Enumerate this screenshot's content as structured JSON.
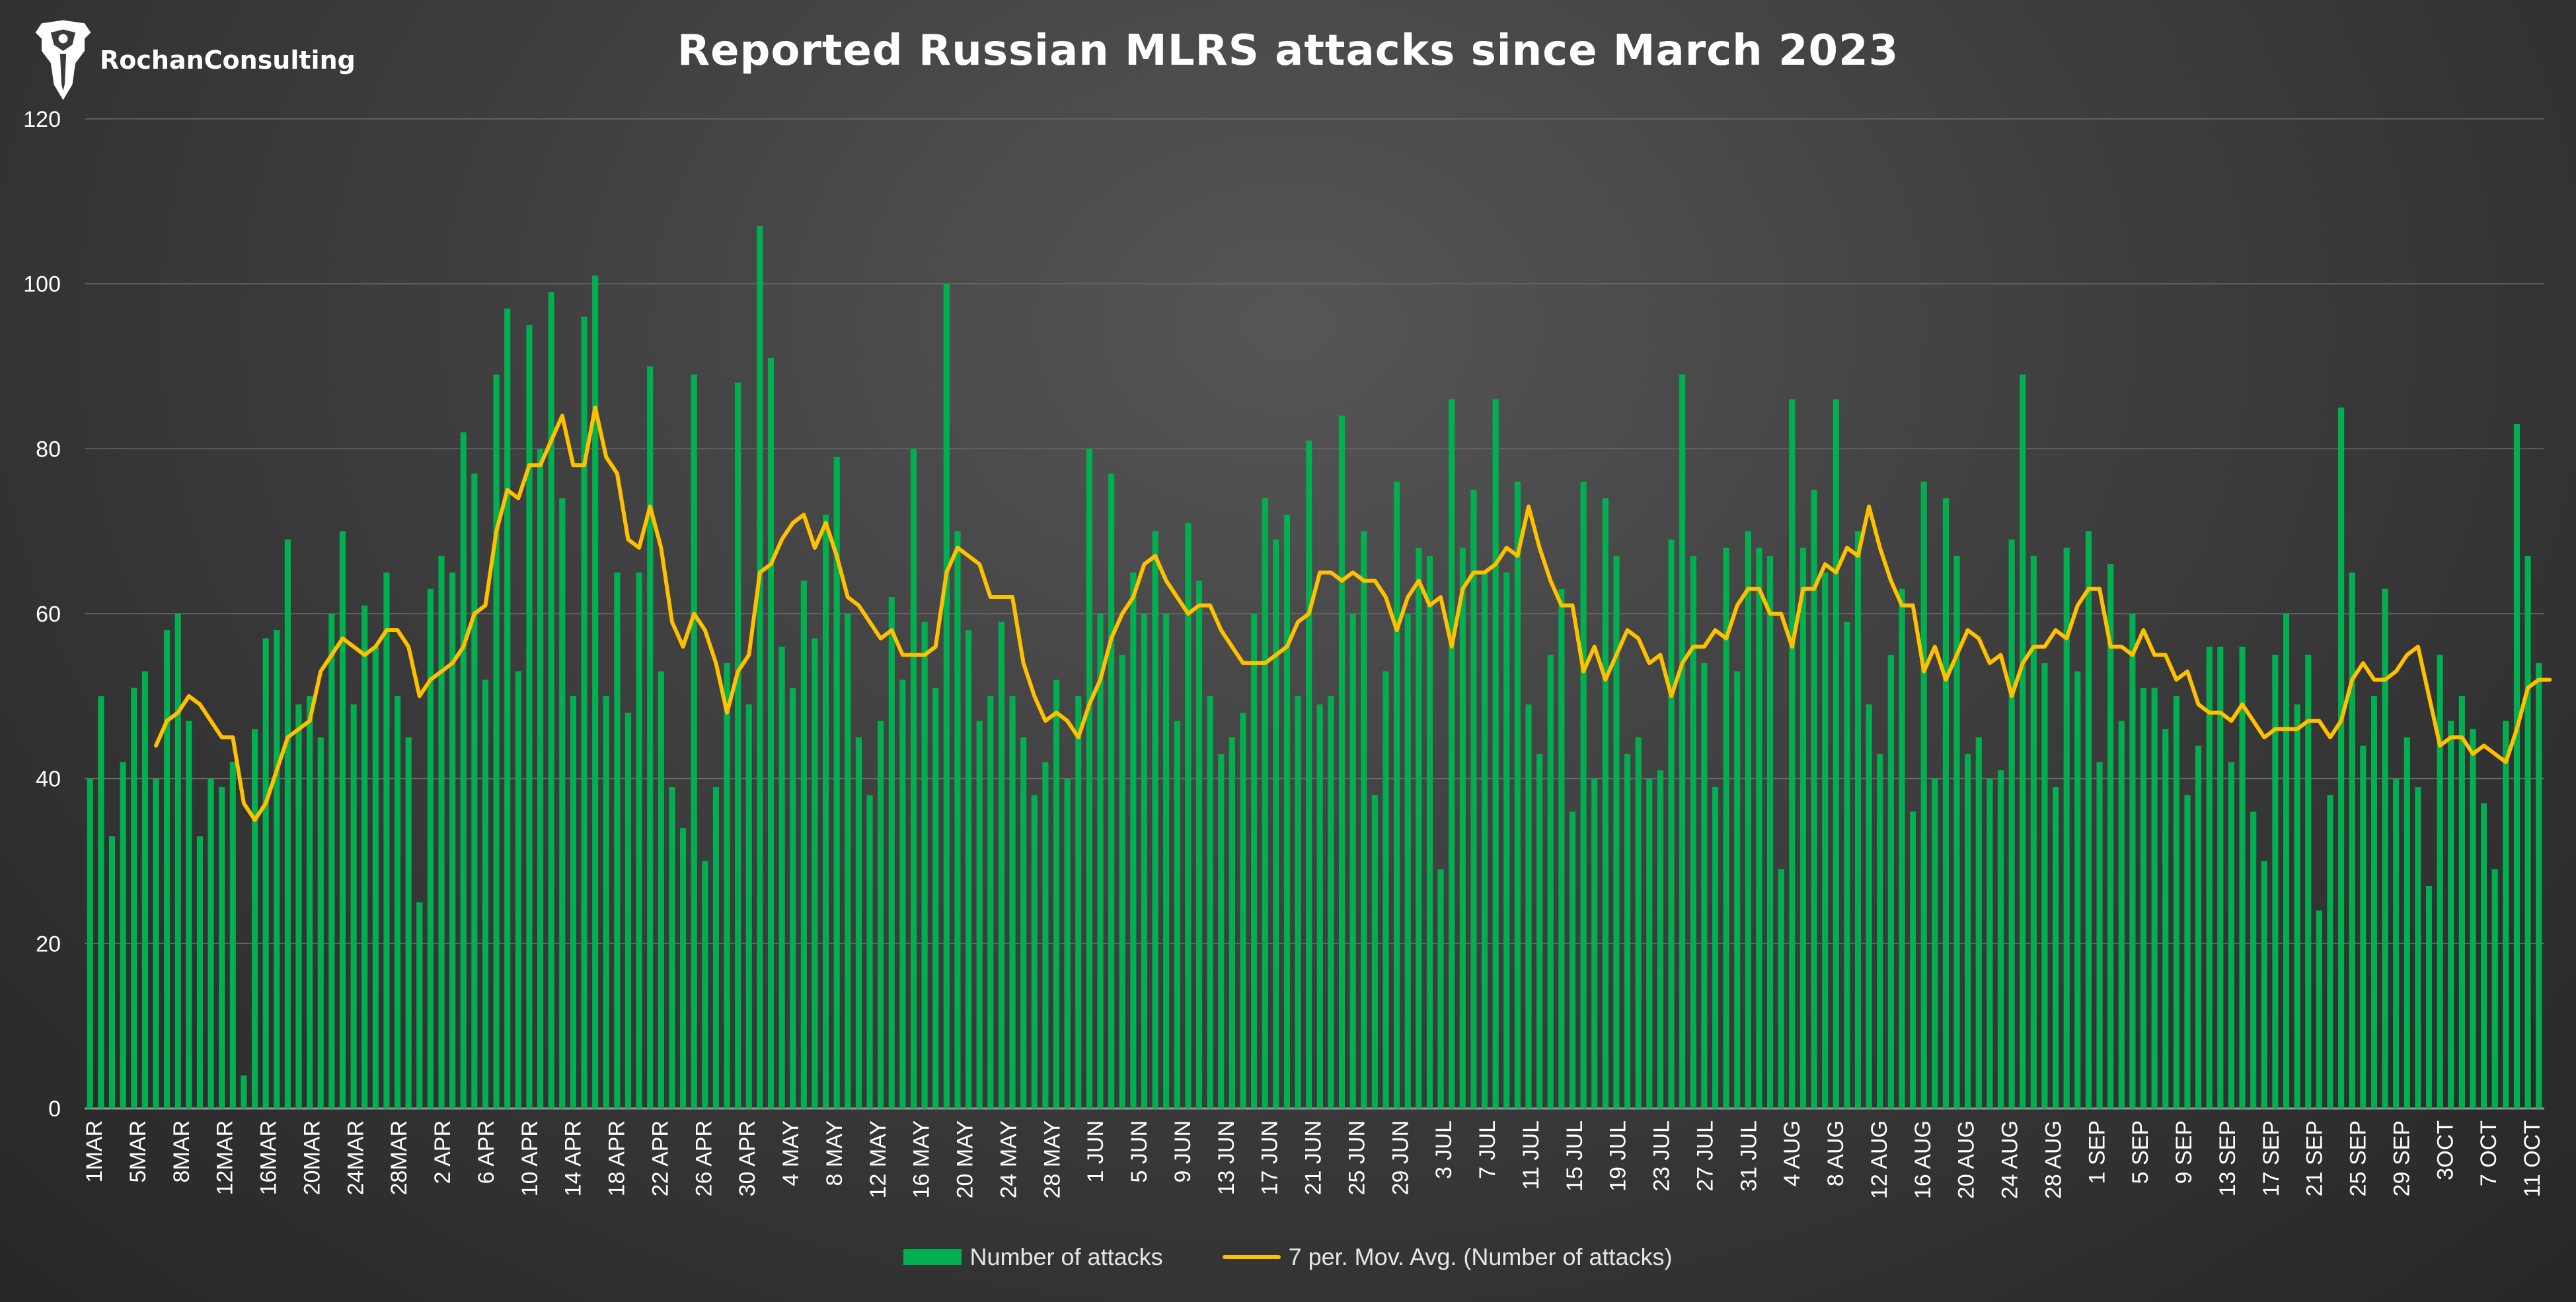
{
  "brand": {
    "name": "RochanConsulting",
    "logo_icon": "eagle-shield-icon"
  },
  "colors": {
    "bar": "#00b050",
    "line": "#ffc000",
    "grid": "#6a6a6a"
  },
  "legend": {
    "bars_label": "Number of attacks",
    "line_label": "7 per. Mov. Avg. (Number of attacks)"
  },
  "chart_data": {
    "type": "bar",
    "title": "Reported Russian MLRS attacks since March 2023",
    "xlabel": "",
    "ylabel": "",
    "ylim": [
      0,
      120
    ],
    "yticks": [
      0,
      20,
      40,
      60,
      80,
      100,
      120
    ],
    "grid": true,
    "legend_position": "bottom",
    "tick_labels": [
      "1MAR",
      "5MAR",
      "8MAR",
      "12MAR",
      "16MAR",
      "20MAR",
      "24MAR",
      "28MAR",
      "2 APR",
      "6 APR",
      "10 APR",
      "14 APR",
      "18 APR",
      "22 APR",
      "26 APR",
      "30 APR",
      "4 MAY",
      "8 MAY",
      "12 MAY",
      "16 MAY",
      "20 MAY",
      "24 MAY",
      "28 MAY",
      "1 JUN",
      "5 JUN",
      "9 JUN",
      "13 JUN",
      "17 JUN",
      "21 JUN",
      "25 JUN",
      "29 JUN",
      "3 JUL",
      "7 JUL",
      "11 JUL",
      "15 JUL",
      "19 JUL",
      "23 JUL",
      "27 JUL",
      "31 JUL",
      "4 AUG",
      "8 AUG",
      "12 AUG",
      "16 AUG",
      "20 AUG",
      "24 AUG",
      "28 AUG",
      "1 SEP",
      "5 SEP",
      "9 SEP",
      "13 SEP",
      "17 SEP",
      "21 SEP",
      "25 SEP",
      "29 SEP",
      "3OCT",
      "7 OCT",
      "11 OCT"
    ],
    "series": [
      {
        "name": "Number of attacks",
        "type": "bar",
        "values": [
          40,
          50,
          33,
          42,
          51,
          53,
          40,
          58,
          60,
          47,
          33,
          40,
          39,
          42,
          4,
          46,
          57,
          58,
          69,
          49,
          50,
          45,
          60,
          70,
          49,
          61,
          56,
          65,
          50,
          45,
          25,
          63,
          67,
          65,
          82,
          77,
          52,
          89,
          97,
          53,
          95,
          80,
          99,
          74,
          50,
          96,
          101,
          50,
          65,
          48,
          65,
          90,
          53,
          39,
          34,
          89,
          30,
          39,
          54,
          88,
          49,
          107,
          91,
          56,
          51,
          64,
          57,
          72,
          79,
          60,
          45,
          38,
          47,
          62,
          52,
          80,
          59,
          51,
          100,
          70,
          58,
          47,
          50,
          59,
          50,
          45,
          38,
          42,
          52,
          40,
          50,
          80,
          60,
          77,
          55,
          65,
          60,
          70,
          60,
          47,
          71,
          64,
          50,
          43,
          45,
          48,
          60,
          74,
          69,
          72,
          50,
          81,
          49,
          50,
          84,
          60,
          70,
          38,
          53,
          76,
          60,
          68,
          67,
          29,
          86,
          68,
          75,
          65,
          86,
          65,
          76,
          49,
          43,
          55,
          63,
          36,
          76,
          40,
          74,
          67,
          43,
          45,
          40,
          41,
          69,
          89,
          67,
          54,
          39,
          68,
          53,
          70,
          68,
          67,
          29,
          86,
          68,
          75,
          65,
          86,
          59,
          70,
          49,
          43,
          55,
          63,
          36,
          76,
          40,
          74,
          67,
          43,
          45,
          40,
          41,
          69,
          89,
          67,
          54,
          39,
          68,
          53,
          70,
          42,
          66,
          47,
          60,
          51,
          51,
          46,
          50,
          38,
          44,
          56,
          56,
          42,
          56,
          36,
          30,
          55,
          60,
          49,
          55,
          24,
          38,
          85,
          65,
          44,
          50,
          63,
          40,
          45,
          39,
          27,
          55,
          47,
          50,
          46,
          37,
          29,
          47,
          83,
          67,
          54
        ]
      },
      {
        "name": "7 per. Mov. Avg. (Number of attacks)",
        "type": "line",
        "values": [
          null,
          null,
          null,
          null,
          null,
          null,
          44,
          47,
          48,
          50,
          49,
          47,
          45,
          45,
          37,
          35,
          37,
          41,
          45,
          46,
          47,
          53,
          55,
          57,
          56,
          55,
          56,
          58,
          58,
          56,
          50,
          52,
          53,
          54,
          56,
          60,
          61,
          70,
          75,
          74,
          78,
          78,
          81,
          84,
          78,
          78,
          85,
          79,
          77,
          69,
          68,
          73,
          68,
          59,
          56,
          60,
          58,
          54,
          48,
          53,
          55,
          65,
          66,
          69,
          71,
          72,
          68,
          71,
          67,
          62,
          61,
          59,
          57,
          58,
          55,
          55,
          55,
          56,
          65,
          68,
          67,
          66,
          62,
          62,
          62,
          54,
          50,
          47,
          48,
          47,
          45,
          49,
          52,
          57,
          60,
          62,
          66,
          67,
          64,
          62,
          60,
          61,
          61,
          58,
          56,
          54,
          54,
          54,
          55,
          56,
          59,
          60,
          65,
          65,
          64,
          65,
          64,
          64,
          62,
          58,
          62,
          64,
          61,
          62,
          56,
          63,
          65,
          65,
          66,
          68,
          67,
          73,
          68,
          64,
          61,
          61,
          53,
          56,
          52,
          55,
          58,
          57,
          54,
          55,
          50,
          54,
          56,
          56,
          58,
          57,
          61,
          63,
          63,
          60,
          60,
          56,
          63,
          63,
          66,
          65,
          68,
          67,
          73,
          68,
          64,
          61,
          61,
          53,
          56,
          52,
          55,
          58,
          57,
          54,
          55,
          50,
          54,
          56,
          56,
          58,
          57,
          61,
          63,
          63,
          56,
          56,
          55,
          58,
          55,
          55,
          52,
          53,
          49,
          48,
          48,
          47,
          49,
          47,
          45,
          46,
          46,
          46,
          47,
          47,
          45,
          47,
          52,
          54,
          52,
          52,
          53,
          55,
          56,
          50,
          44,
          45,
          45,
          43,
          44,
          43,
          42,
          46,
          51,
          52,
          52
        ]
      }
    ]
  }
}
